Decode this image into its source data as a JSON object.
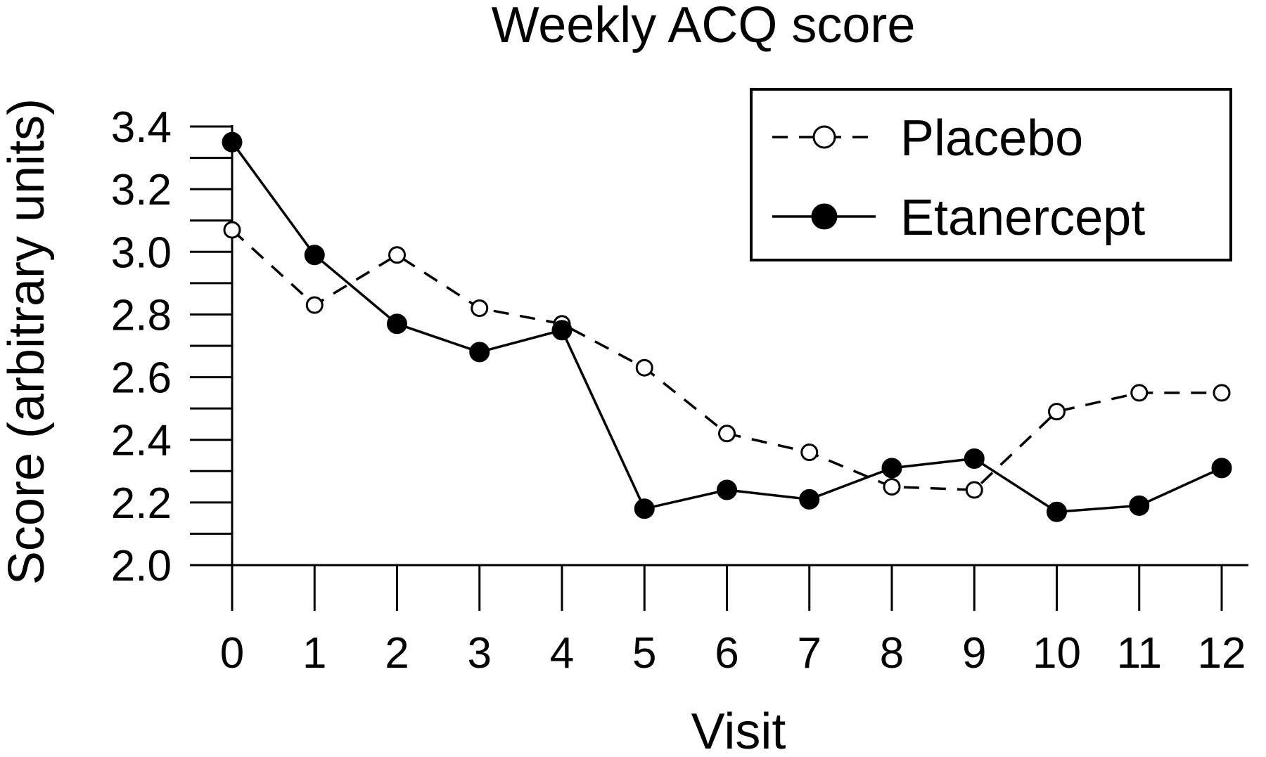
{
  "chart_data": {
    "type": "line",
    "title": "Weekly ACQ score",
    "xlabel": "Visit",
    "ylabel": "Score (arbitrary units)",
    "x": [
      0,
      1,
      2,
      3,
      4,
      5,
      6,
      7,
      8,
      9,
      10,
      11,
      12
    ],
    "xticks": [
      "0",
      "1",
      "2",
      "3",
      "4",
      "5",
      "6",
      "7",
      "8",
      "9",
      "10",
      "11",
      "12"
    ],
    "yticks": [
      "2.0",
      "2.2",
      "2.4",
      "2.6",
      "2.8",
      "3.0",
      "3.2",
      "3.4"
    ],
    "ylim": [
      2.0,
      3.4
    ],
    "xlim": [
      0,
      12
    ],
    "grid": false,
    "legend_position": "top-right",
    "series": [
      {
        "name": "Placebo",
        "style": "dashed",
        "marker": "open-circle",
        "values": [
          3.07,
          2.83,
          2.99,
          2.82,
          2.77,
          2.63,
          2.42,
          2.36,
          2.25,
          2.24,
          2.49,
          2.55,
          2.55
        ]
      },
      {
        "name": "Etanercept",
        "style": "solid",
        "marker": "filled-circle",
        "values": [
          3.35,
          2.99,
          2.77,
          2.68,
          2.75,
          2.18,
          2.24,
          2.21,
          2.31,
          2.34,
          2.17,
          2.19,
          2.31
        ]
      }
    ],
    "colors": {
      "line": "#000000",
      "background": "#ffffff"
    }
  }
}
